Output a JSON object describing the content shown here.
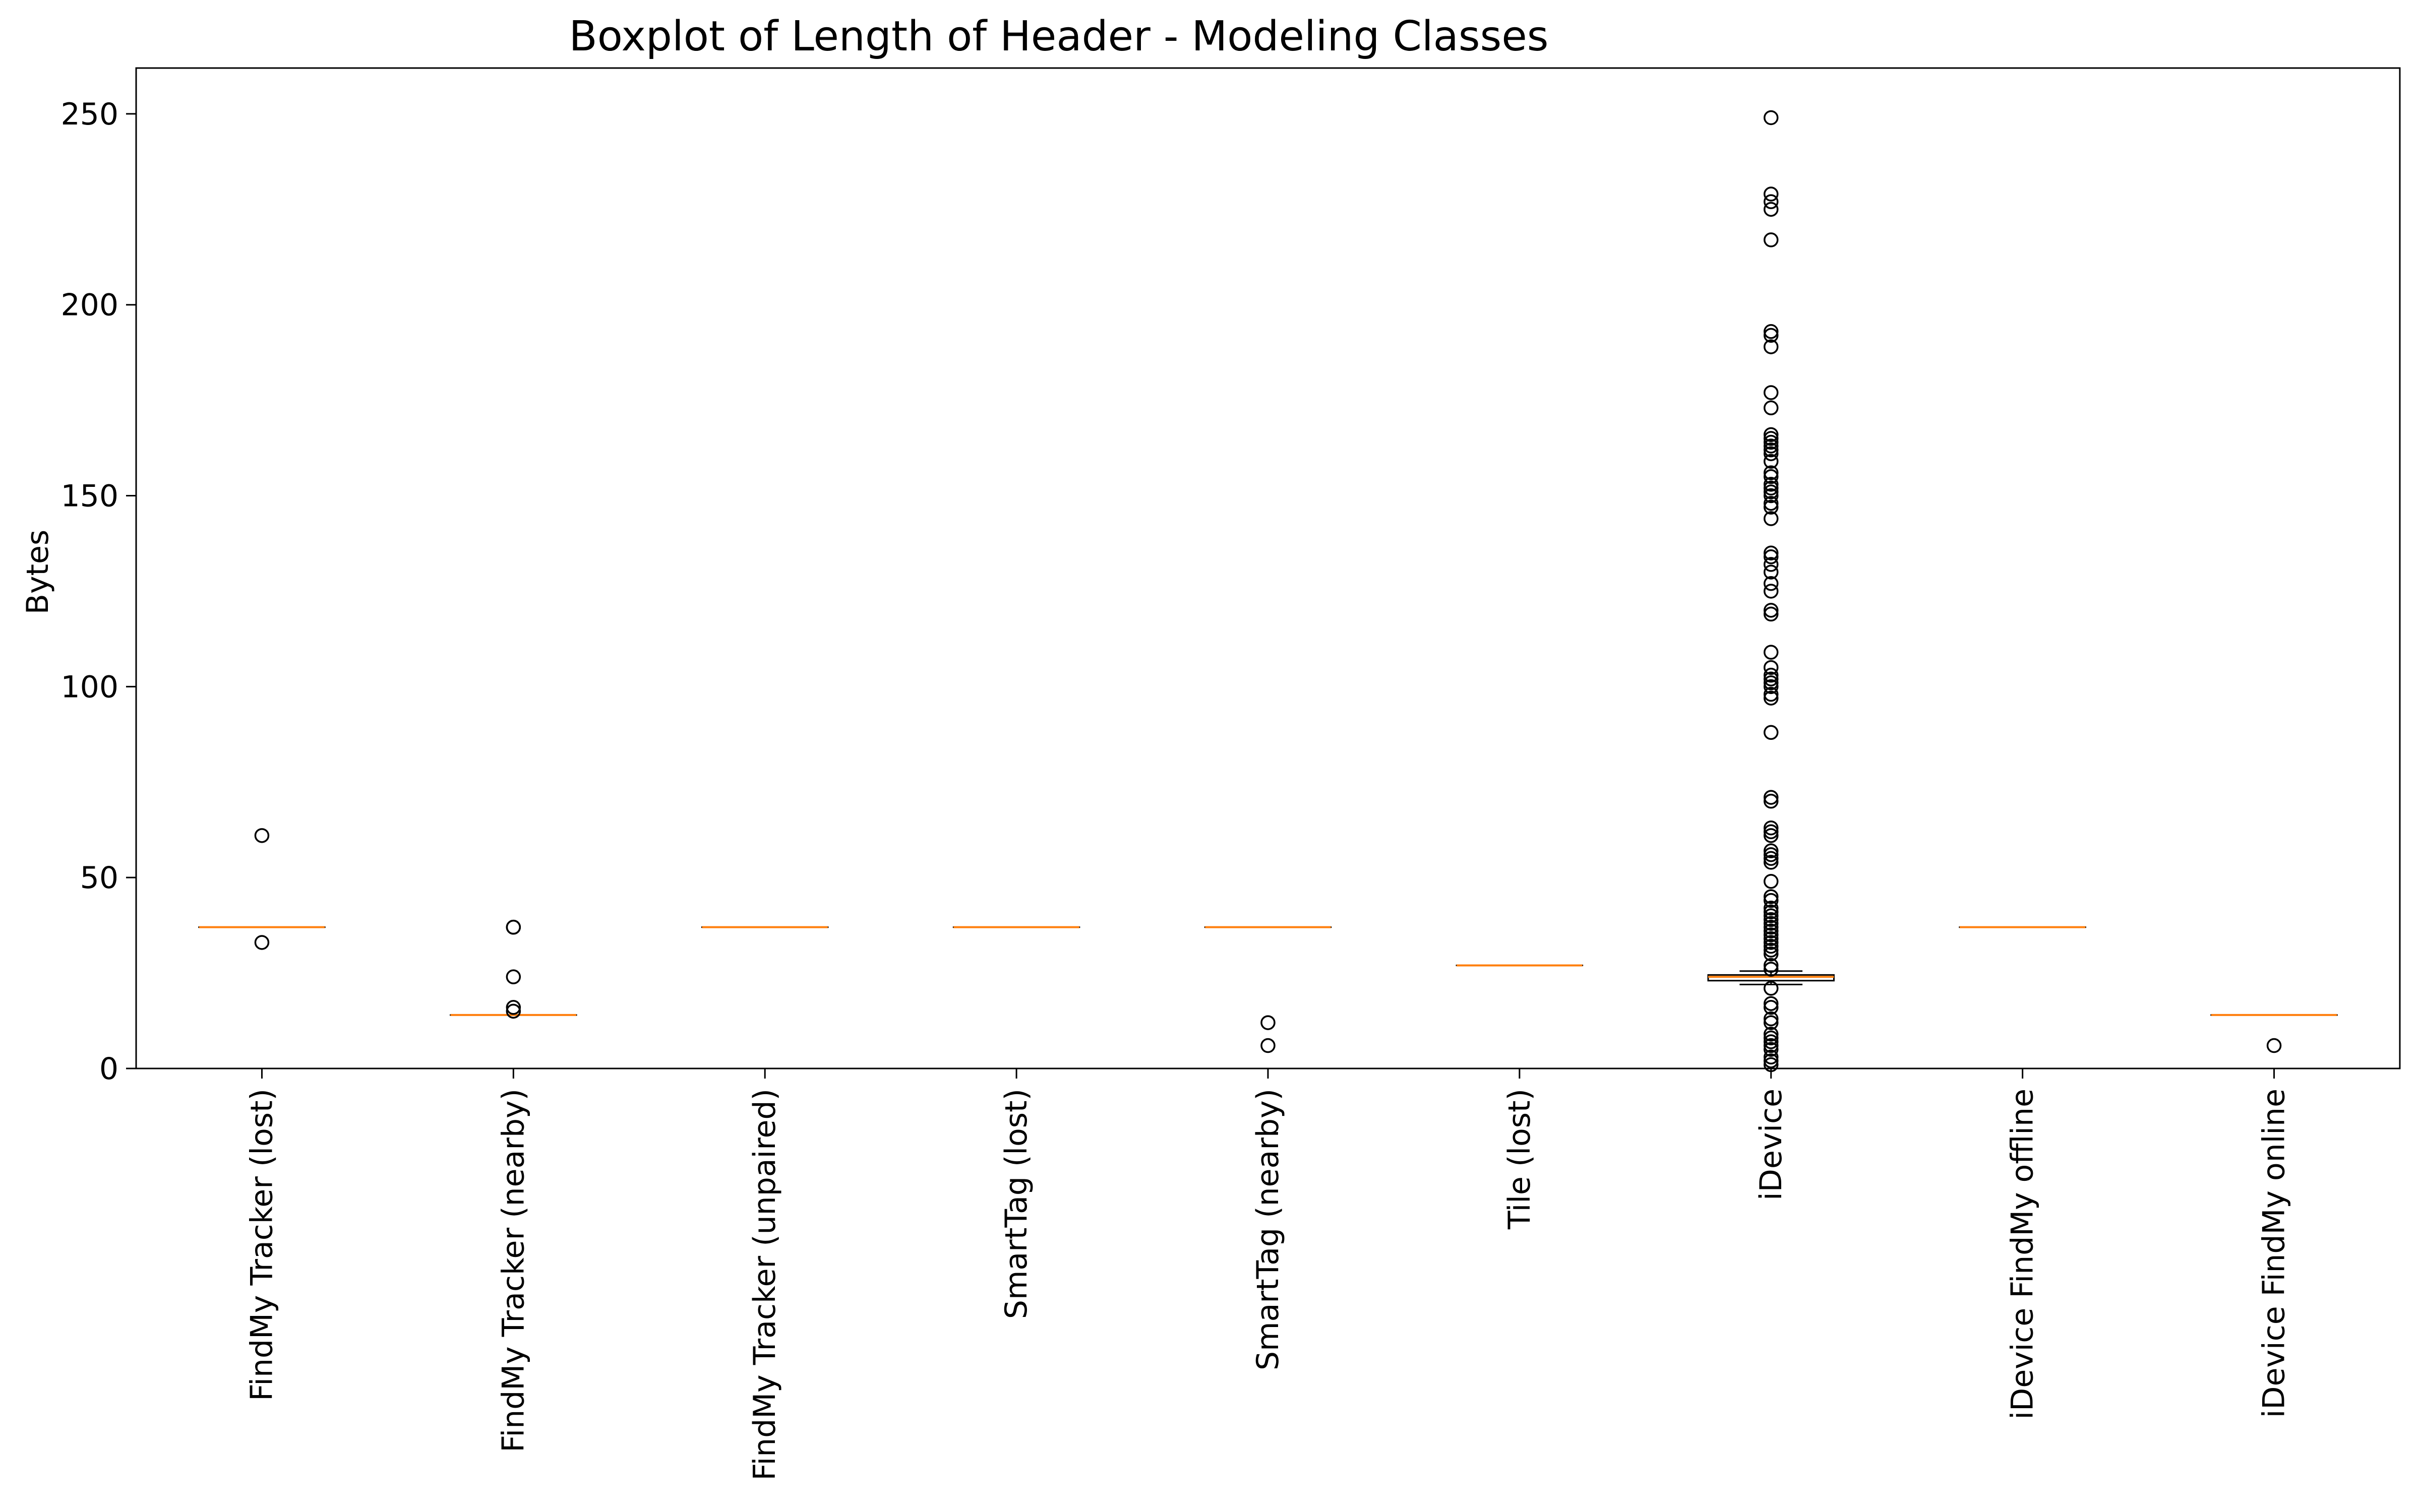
{
  "chart_data": {
    "type": "boxplot",
    "title": "Boxplot of Length of Header - Modeling Classes",
    "xlabel": "",
    "ylabel": "Bytes",
    "ylim": [
      0,
      262
    ],
    "yticks": [
      0,
      50,
      100,
      150,
      200,
      250
    ],
    "grid": false,
    "categories": [
      "FindMy Tracker (lost)",
      "FindMy Tracker (nearby)",
      "FindMy Tracker (unpaired)",
      "SmartTag (lost)",
      "SmartTag (nearby)",
      "Tile (lost)",
      "iDevice",
      "iDevice FindMy offline",
      "iDevice FindMy online"
    ],
    "boxes": [
      {
        "q1": 37,
        "median": 37,
        "q3": 37,
        "whisker_low": 37,
        "whisker_high": 37,
        "outliers": [
          61,
          33
        ]
      },
      {
        "q1": 14,
        "median": 14,
        "q3": 14,
        "whisker_low": 14,
        "whisker_high": 14,
        "outliers": [
          37,
          37,
          24,
          16,
          15
        ]
      },
      {
        "q1": 37,
        "median": 37,
        "q3": 37,
        "whisker_low": 37,
        "whisker_high": 37,
        "outliers": []
      },
      {
        "q1": 37,
        "median": 37,
        "q3": 37,
        "whisker_low": 37,
        "whisker_high": 37,
        "outliers": []
      },
      {
        "q1": 37,
        "median": 37,
        "q3": 37,
        "whisker_low": 37,
        "whisker_high": 37,
        "outliers": [
          12,
          6
        ]
      },
      {
        "q1": 27,
        "median": 27,
        "q3": 27,
        "whisker_low": 27,
        "whisker_high": 27,
        "outliers": []
      },
      {
        "q1": 23,
        "median": 24,
        "q3": 24.5,
        "whisker_low": 22,
        "whisker_high": 25.5,
        "outliers": [
          249,
          229,
          227,
          225,
          217,
          193,
          192,
          189,
          177,
          173,
          166,
          165,
          164,
          163,
          162,
          161,
          159,
          156,
          155,
          153,
          152,
          151,
          150,
          148,
          147,
          144,
          135,
          134,
          132,
          130,
          127,
          125,
          120,
          119,
          109,
          105,
          103,
          102,
          101,
          100,
          98,
          97,
          88,
          71,
          70,
          63,
          62,
          61,
          57,
          56,
          55,
          54,
          49,
          45,
          44,
          42,
          41,
          40,
          39,
          38,
          37,
          36,
          35,
          34,
          33,
          32,
          31,
          30,
          27,
          26,
          21,
          17,
          16,
          13,
          12,
          9,
          8,
          7,
          6,
          5,
          3,
          2,
          1
        ]
      },
      {
        "q1": 37,
        "median": 37,
        "q3": 37,
        "whisker_low": 37,
        "whisker_high": 37,
        "outliers": []
      },
      {
        "q1": 14,
        "median": 14,
        "q3": 14,
        "whisker_low": 14,
        "whisker_high": 14,
        "outliers": [
          6
        ]
      }
    ],
    "colors": {
      "box": "#000000",
      "median": "#ff7f0e",
      "outlier_edge": "#000000"
    }
  }
}
